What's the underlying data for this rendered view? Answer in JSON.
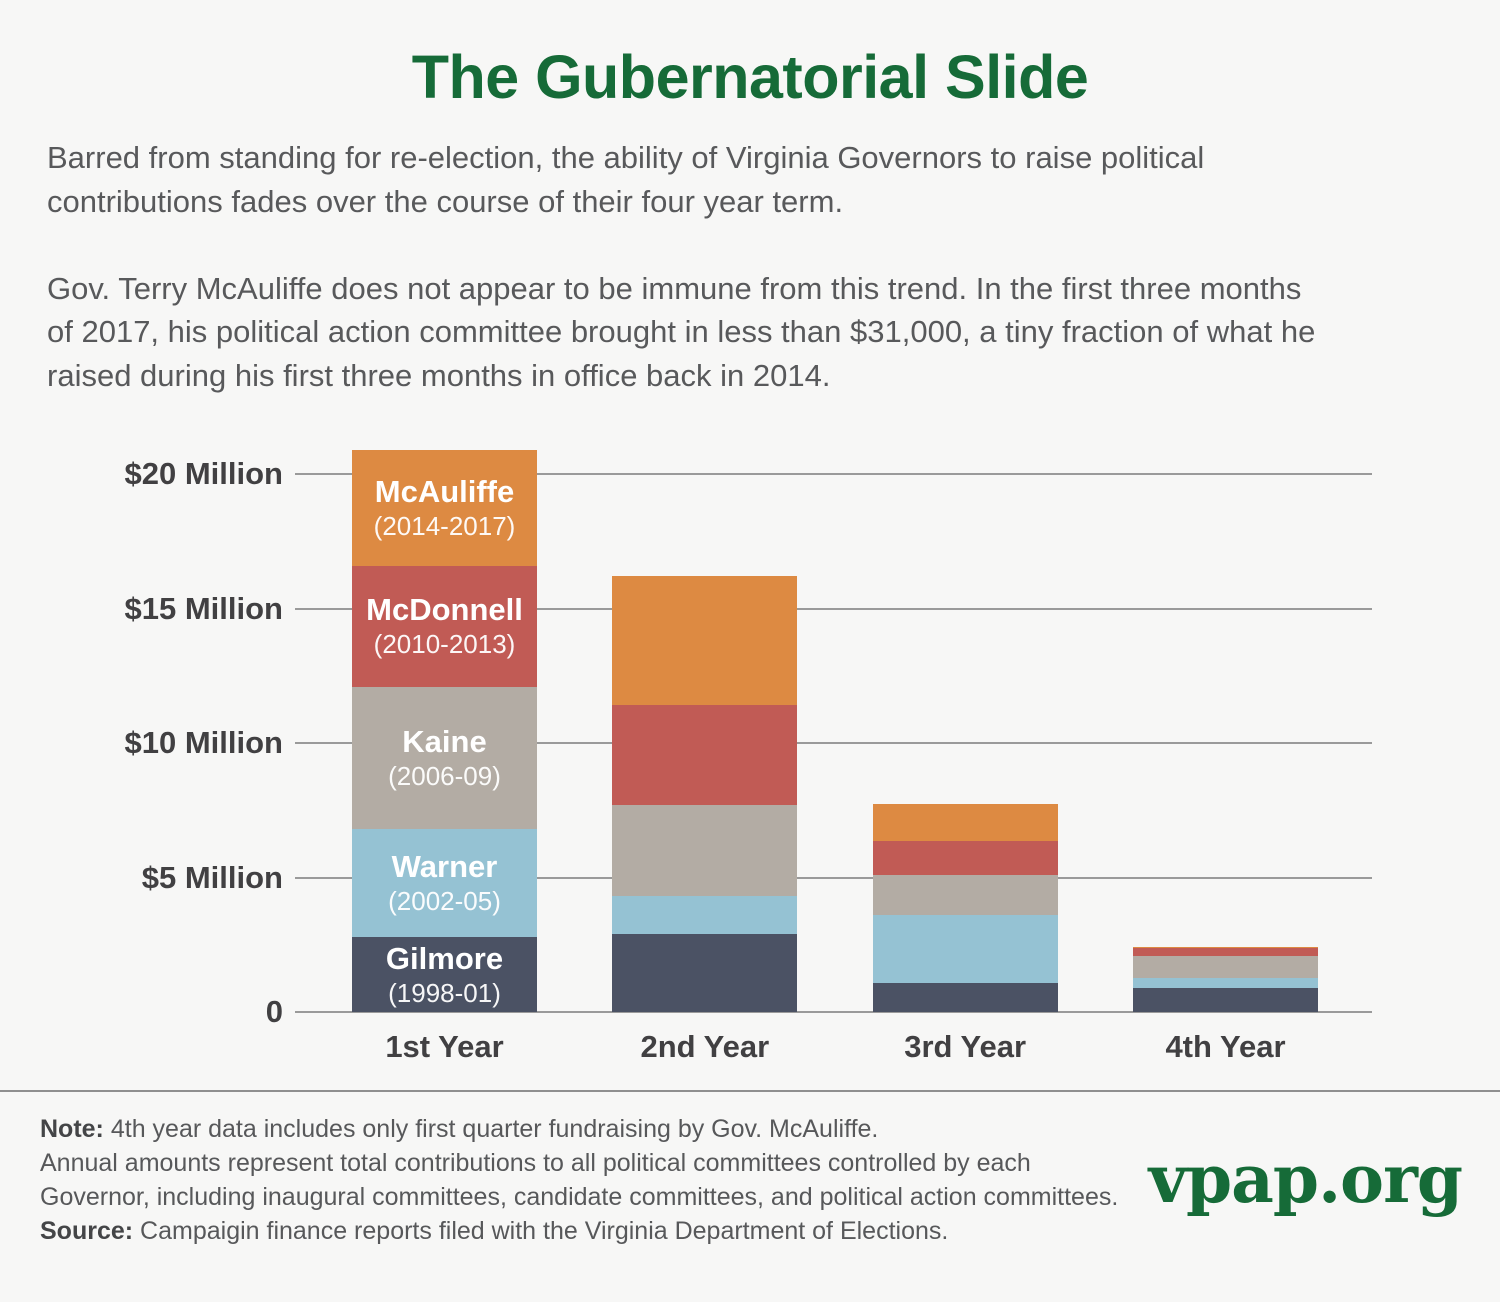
{
  "header": {
    "title": "The Gubernatorial Slide",
    "title_color": "#166B38"
  },
  "intro": {
    "paragraph1": "Barred from standing for re-election, the ability of Virginia Governors to raise political\ncontributions fades over the course of their four year term.",
    "paragraph2": "Gov. Terry McAuliffe does not appear to be immune from this trend. In the first three months\nof 2017, his political action committee brought in less than $31,000, a tiny fraction of what he\nraised during his first three months in office back in 2014."
  },
  "chart_data": {
    "type": "bar",
    "stacked": true,
    "unit": "millions of dollars",
    "categories": [
      "1st Year",
      "2nd Year",
      "3rd Year",
      "4th Year"
    ],
    "series": [
      {
        "name": "Gilmore",
        "years": "(1998-01)",
        "color": "#4B5264",
        "values": [
          2.8,
          2.9,
          1.1,
          0.9
        ]
      },
      {
        "name": "Warner",
        "years": "(2002-05)",
        "color": "#95C2D3",
        "values": [
          4.0,
          1.4,
          2.5,
          0.35
        ]
      },
      {
        "name": "Kaine",
        "years": "(2006-09)",
        "color": "#B3ACA4",
        "values": [
          5.3,
          3.4,
          1.5,
          0.85
        ]
      },
      {
        "name": "McDonnell",
        "years": "(2010-2013)",
        "color": "#C15B55",
        "values": [
          4.5,
          3.7,
          1.25,
          0.3
        ]
      },
      {
        "name": "McAuliffe",
        "years": "(2014-2017)",
        "color": "#DD8A42",
        "values": [
          4.3,
          4.8,
          1.4,
          0.03
        ]
      }
    ],
    "ylim": [
      0,
      21
    ],
    "yticks": [
      {
        "value": 20,
        "label": "$20 Million"
      },
      {
        "value": 15,
        "label": "$15 Million"
      },
      {
        "value": 10,
        "label": "$10 Million"
      },
      {
        "value": 5,
        "label": "$5 Million"
      },
      {
        "value": 0,
        "label": "0"
      }
    ],
    "grid": true,
    "legend_position": "labels-inside-first-bar",
    "labeled_category_index": 0
  },
  "footer": {
    "note_label": "Note:",
    "note_text": "4th year data includes only first quarter fundraising by Gov. McAuliffe.",
    "body_line1": "Annual amounts represent total contributions to all political committees controlled by each",
    "body_line2": "Governor, including inaugural committees, candidate committees, and political action committees.",
    "source_label": "Source:",
    "source_text": "Campaigin finance reports filed with the Virginia Department of Elections.",
    "logo": "vpap.org",
    "logo_color": "#166B38"
  }
}
